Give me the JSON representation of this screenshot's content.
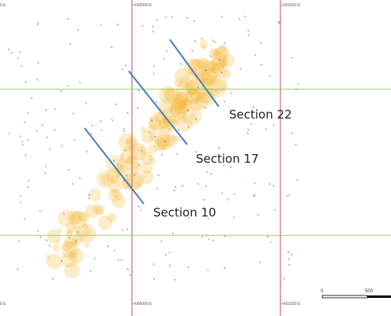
{
  "grid_labels": {
    "top": [
      "0 E",
      "+660000 E",
      "+661500 E"
    ],
    "bottom": [
      "0 E",
      "+660000 E",
      "+661500 E"
    ]
  },
  "sections": [
    {
      "label": "Section 22"
    },
    {
      "label": "Section 17"
    },
    {
      "label": "Section 10"
    }
  ],
  "scale_bar": {
    "labels": [
      "0",
      "500"
    ]
  }
}
